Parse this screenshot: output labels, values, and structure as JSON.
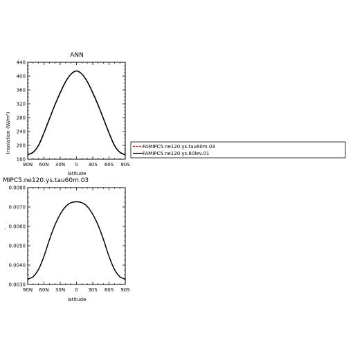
{
  "chart_data": [
    {
      "type": "line",
      "title": "ANN",
      "xlabel": "latitude",
      "ylabel": "Insolation (W/m²)",
      "xlim": [
        90,
        -90
      ],
      "ylim": [
        160,
        440
      ],
      "x_ticks": [
        90,
        60,
        30,
        0,
        -30,
        -60,
        -90
      ],
      "x_tick_labels": [
        "90N",
        "60N",
        "30N",
        "0",
        "30S",
        "60S",
        "90S"
      ],
      "y_ticks": [
        160,
        200,
        240,
        280,
        320,
        360,
        400,
        440
      ],
      "y_tick_labels": [
        "160",
        "200",
        "240",
        "280",
        "320",
        "360",
        "400",
        "440"
      ],
      "x": [
        90,
        80,
        70,
        60,
        50,
        40,
        30,
        20,
        10,
        0,
        -10,
        -20,
        -30,
        -40,
        -50,
        -60,
        -70,
        -80,
        -90
      ],
      "series": [
        {
          "name": "FAMIPC5.ne120.ys.tau60m.03",
          "color": "#c00000",
          "values": [
            173,
            180,
            200,
            236,
            276,
            316,
            352,
            384,
            406,
            415,
            406,
            384,
            352,
            316,
            276,
            236,
            200,
            180,
            173
          ]
        },
        {
          "name": "FAMIPC5.ne120.ys.60lev.01",
          "color": "#000000",
          "values": [
            173,
            180,
            200,
            236,
            276,
            316,
            352,
            384,
            406,
            415,
            406,
            384,
            352,
            316,
            276,
            236,
            200,
            180,
            173
          ]
        }
      ],
      "grid": false,
      "legend": "right"
    },
    {
      "type": "line",
      "title": "MIPC5.ne120.ys.tau60m.03",
      "xlabel": "latitude",
      "ylabel": "",
      "xlim": [
        90,
        -90
      ],
      "ylim": [
        0.003,
        0.008
      ],
      "x_ticks": [
        90,
        60,
        30,
        0,
        -30,
        -60,
        -90
      ],
      "x_tick_labels": [
        "90N",
        "60N",
        "30N",
        "0",
        "30S",
        "60S",
        "90S"
      ],
      "y_ticks": [
        0.003,
        0.004,
        0.005,
        0.006,
        0.007,
        0.008
      ],
      "y_tick_labels": [
        "0.0030",
        "0.0040",
        "0.0050",
        "0.0060",
        "0.0070",
        "0.0080"
      ],
      "x": [
        90,
        80,
        70,
        60,
        50,
        40,
        30,
        20,
        10,
        0,
        -10,
        -20,
        -30,
        -40,
        -50,
        -60,
        -70,
        -80,
        -90
      ],
      "series": [
        {
          "color": "#000000",
          "values": [
            0.00328,
            0.0034,
            0.00378,
            0.00445,
            0.0053,
            0.00605,
            0.00662,
            0.00702,
            0.00722,
            0.00727,
            0.00722,
            0.00702,
            0.00662,
            0.00605,
            0.0053,
            0.00445,
            0.00378,
            0.0034,
            0.00328
          ]
        }
      ],
      "grid": false
    }
  ]
}
